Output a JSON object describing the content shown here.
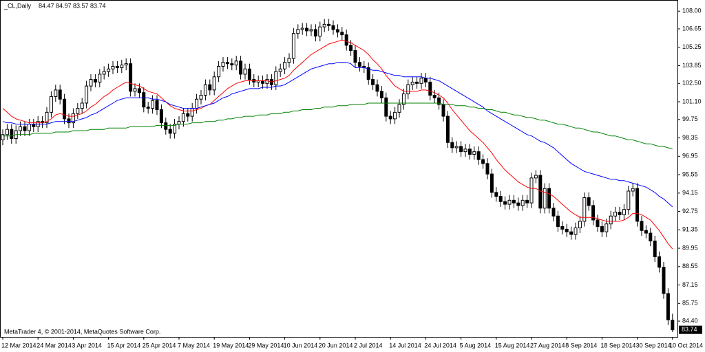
{
  "chart_data": {
    "type": "candlestick",
    "symbol": "_CL,Daily",
    "footer": "MetaTrader 4, © 2001-2014, MetaQuotes Software Corp.",
    "up_color": "#ffffff",
    "down_color": "#000000",
    "grid": false,
    "ylim": [
      83.2,
      108.85
    ],
    "yticks": [
      {
        "value": 108,
        "label": "108.00"
      },
      106.65,
      105.25,
      103.85,
      {
        "value": 102.5,
        "label": "102.50"
      },
      {
        "value": 101.1,
        "label": "101.10"
      },
      99.75,
      98.35,
      96.95,
      95.55,
      94.15,
      92.75,
      91.35,
      89.95,
      88.55,
      87.15,
      85.75,
      {
        "value": 84.4,
        "label": "84.40"
      }
    ],
    "categories": [
      "12 Mar 2014",
      null,
      null,
      null,
      null,
      null,
      null,
      null,
      "24 Mar 2014",
      null,
      null,
      null,
      null,
      null,
      null,
      null,
      "3 Apr 2014",
      null,
      null,
      null,
      null,
      null,
      null,
      null,
      "15 Apr 2014",
      null,
      null,
      null,
      null,
      null,
      null,
      null,
      "25 Apr 2014",
      null,
      null,
      null,
      null,
      null,
      null,
      null,
      "7 May 2014",
      null,
      null,
      null,
      null,
      null,
      null,
      null,
      "19 May 2014",
      null,
      null,
      null,
      null,
      null,
      null,
      null,
      "29 May 2014",
      null,
      null,
      null,
      null,
      null,
      null,
      null,
      "10 Jun 2014",
      null,
      null,
      null,
      null,
      null,
      null,
      null,
      "20 Jun 2014",
      null,
      null,
      null,
      null,
      null,
      null,
      null,
      "2 Jul 2014",
      null,
      null,
      null,
      null,
      null,
      null,
      null,
      "14 Jul 2014",
      null,
      null,
      null,
      null,
      null,
      null,
      null,
      "24 Jul 2014",
      null,
      null,
      null,
      null,
      null,
      null,
      null,
      "5 Aug 2014",
      null,
      null,
      null,
      null,
      null,
      null,
      null,
      "15 Aug 2014",
      null,
      null,
      null,
      null,
      null,
      null,
      null,
      "27 Aug 2014",
      null,
      null,
      null,
      null,
      null,
      null,
      null,
      "8 Sep 2014",
      null,
      null,
      null,
      null,
      null,
      null,
      null,
      "18 Sep 2014",
      null,
      null,
      null,
      null,
      null,
      null,
      null,
      "30 Sep 2014",
      null,
      null,
      null,
      null,
      null,
      null,
      null,
      "10 Oct 2014"
    ],
    "open": [
      98.2,
      98.6,
      99.0,
      98.3,
      98.9,
      99.2,
      98.9,
      99.4,
      99.2,
      99.6,
      99.5,
      100.3,
      101.5,
      102.0,
      101.3,
      99.8,
      99.5,
      100.2,
      100.6,
      101.0,
      102.3,
      102.8,
      102.6,
      103.2,
      103.4,
      103.6,
      103.8,
      103.7,
      103.9,
      104.0,
      101.9,
      102.1,
      101.8,
      100.7,
      100.6,
      101.2,
      100.5,
      99.5,
      99.0,
      98.7,
      99.4,
      99.6,
      100.2,
      100.0,
      100.6,
      101.3,
      101.6,
      102.4,
      102.0,
      103.0,
      103.8,
      104.1,
      104.0,
      103.9,
      104.2,
      103.2,
      103.6,
      102.8,
      102.6,
      102.7,
      102.5,
      102.8,
      102.4,
      103.4,
      103.6,
      104.1,
      104.4,
      106.3,
      106.6,
      106.7,
      106.5,
      106.6,
      106.1,
      106.8,
      107.0,
      106.9,
      106.6,
      106.4,
      106.2,
      105.4,
      105.0,
      104.1,
      103.8,
      103.7,
      102.8,
      102.4,
      101.9,
      101.4,
      100.0,
      99.8,
      100.3,
      100.9,
      101.7,
      102.4,
      102.6,
      102.5,
      102.9,
      102.6,
      101.6,
      101.4,
      100.9,
      100.0,
      98.0,
      97.6,
      97.7,
      97.3,
      97.5,
      97.1,
      97.3,
      96.7,
      96.4,
      95.6,
      94.2,
      93.9,
      93.5,
      93.3,
      93.6,
      93.4,
      93.2,
      93.6,
      93.4,
      95.3,
      95.5,
      93.0,
      94.5,
      93.0,
      92.4,
      91.6,
      91.4,
      91.2,
      91.0,
      91.5,
      92.0,
      93.8,
      93.2,
      92.1,
      91.6,
      91.2,
      91.8,
      92.4,
      92.7,
      92.5,
      92.9,
      94.3,
      94.5,
      92.0,
      91.3,
      91.1,
      90.5,
      89.3,
      88.5,
      86.5,
      84.47
    ],
    "high": [
      99.0,
      99.4,
      99.4,
      99.3,
      99.6,
      99.6,
      99.8,
      99.8,
      100.0,
      100.0,
      100.7,
      101.9,
      102.4,
      102.4,
      101.7,
      100.2,
      100.6,
      101.0,
      101.4,
      102.7,
      103.2,
      103.2,
      103.6,
      103.8,
      104.0,
      104.2,
      104.2,
      104.3,
      104.4,
      104.4,
      102.5,
      102.5,
      102.2,
      101.1,
      101.6,
      101.6,
      100.9,
      99.9,
      99.4,
      99.8,
      100.0,
      100.6,
      100.6,
      101.0,
      101.7,
      102.0,
      102.8,
      102.8,
      103.4,
      104.2,
      104.5,
      104.5,
      104.4,
      104.6,
      104.6,
      104.0,
      104.0,
      103.2,
      103.1,
      103.1,
      103.2,
      103.2,
      103.8,
      104.0,
      104.5,
      104.8,
      106.7,
      107.0,
      107.1,
      107.1,
      107.0,
      107.0,
      107.2,
      107.4,
      107.4,
      107.3,
      107.0,
      106.8,
      106.6,
      105.8,
      105.4,
      104.5,
      104.2,
      104.1,
      103.2,
      102.8,
      102.3,
      101.8,
      100.4,
      100.7,
      101.3,
      102.1,
      102.8,
      103.0,
      103.0,
      103.3,
      103.3,
      103.0,
      102.0,
      101.8,
      101.3,
      100.4,
      98.4,
      98.1,
      98.1,
      97.9,
      97.9,
      97.7,
      97.7,
      97.1,
      96.8,
      96.0,
      94.6,
      94.3,
      93.9,
      94.0,
      94.0,
      93.8,
      94.0,
      94.0,
      95.7,
      95.9,
      95.9,
      94.9,
      94.9,
      93.4,
      92.8,
      92.0,
      91.8,
      91.6,
      91.9,
      92.4,
      94.2,
      94.2,
      93.6,
      92.5,
      92.0,
      92.2,
      92.8,
      93.1,
      93.1,
      93.3,
      94.7,
      94.9,
      94.9,
      92.4,
      91.7,
      91.5,
      90.9,
      89.7,
      88.9,
      86.9,
      84.97
    ],
    "low": [
      97.8,
      98.2,
      97.9,
      97.9,
      98.5,
      98.5,
      98.5,
      98.8,
      98.8,
      99.1,
      99.1,
      99.9,
      101.1,
      100.9,
      99.4,
      99.1,
      99.1,
      99.8,
      100.2,
      100.6,
      101.9,
      102.2,
      102.2,
      102.8,
      103.0,
      103.2,
      103.3,
      103.3,
      103.5,
      101.5,
      101.5,
      101.4,
      100.3,
      100.2,
      100.2,
      100.1,
      99.1,
      98.6,
      98.3,
      98.3,
      99.0,
      99.2,
      99.6,
      99.6,
      100.2,
      100.9,
      101.2,
      101.6,
      101.6,
      102.6,
      103.4,
      103.6,
      103.5,
      103.5,
      102.8,
      102.8,
      102.4,
      102.2,
      102.2,
      102.1,
      102.1,
      102.0,
      102.0,
      103.0,
      103.2,
      103.7,
      104.0,
      105.9,
      106.2,
      106.1,
      106.1,
      105.7,
      105.7,
      106.4,
      106.5,
      106.2,
      106.0,
      105.8,
      105.0,
      104.6,
      103.7,
      103.4,
      103.3,
      102.4,
      102.0,
      101.5,
      101.0,
      99.6,
      99.4,
      99.4,
      99.9,
      100.5,
      101.3,
      102.0,
      102.1,
      102.1,
      102.2,
      101.2,
      101.0,
      100.5,
      99.6,
      97.6,
      97.2,
      97.2,
      96.9,
      96.9,
      96.7,
      96.7,
      96.3,
      96.0,
      95.2,
      93.8,
      93.5,
      93.1,
      92.9,
      92.9,
      93.0,
      92.8,
      92.8,
      93.0,
      93.0,
      94.9,
      92.6,
      92.6,
      92.6,
      92.0,
      91.2,
      91.0,
      90.8,
      90.6,
      90.6,
      91.1,
      91.6,
      92.8,
      91.7,
      91.2,
      90.8,
      90.8,
      91.4,
      92.0,
      92.1,
      92.1,
      92.5,
      93.9,
      91.6,
      90.9,
      90.7,
      90.1,
      88.9,
      88.1,
      86.1,
      84.1,
      83.57
    ],
    "close": [
      98.6,
      99.0,
      98.3,
      98.9,
      99.2,
      98.9,
      99.4,
      99.2,
      99.6,
      99.5,
      100.3,
      101.5,
      102.0,
      101.3,
      99.8,
      99.5,
      100.2,
      100.6,
      101.0,
      102.3,
      102.8,
      102.6,
      103.2,
      103.4,
      103.6,
      103.8,
      103.7,
      103.9,
      104.0,
      101.9,
      102.1,
      101.8,
      100.7,
      100.6,
      101.2,
      100.5,
      99.5,
      99.0,
      98.7,
      99.4,
      99.6,
      100.2,
      100.0,
      100.6,
      101.3,
      101.6,
      102.4,
      102.0,
      103.0,
      103.8,
      104.1,
      104.0,
      103.9,
      104.2,
      103.2,
      103.6,
      102.8,
      102.6,
      102.7,
      102.5,
      102.8,
      102.4,
      103.4,
      103.6,
      104.1,
      104.4,
      106.3,
      106.6,
      106.7,
      106.5,
      106.6,
      106.1,
      106.8,
      107.0,
      106.9,
      106.6,
      106.4,
      106.2,
      105.4,
      105.0,
      104.1,
      103.8,
      103.7,
      102.8,
      102.4,
      101.9,
      101.4,
      100.0,
      99.8,
      100.3,
      100.9,
      101.7,
      102.4,
      102.6,
      102.5,
      102.9,
      102.6,
      101.6,
      101.4,
      100.9,
      100.0,
      98.0,
      97.6,
      97.7,
      97.3,
      97.5,
      97.1,
      97.3,
      96.7,
      96.4,
      95.6,
      94.2,
      93.9,
      93.5,
      93.3,
      93.6,
      93.4,
      93.2,
      93.6,
      93.4,
      95.3,
      95.5,
      93.0,
      94.5,
      93.0,
      92.4,
      91.6,
      91.4,
      91.2,
      91.0,
      91.5,
      92.0,
      93.8,
      93.2,
      92.1,
      91.6,
      91.2,
      91.8,
      92.4,
      92.7,
      92.5,
      92.9,
      94.3,
      94.5,
      92.0,
      91.3,
      91.1,
      90.5,
      89.3,
      88.5,
      86.5,
      84.5,
      83.74
    ],
    "series": [
      {
        "color": "#ff0000",
        "values": [
          100.6,
          100.3,
          100.0,
          99.8,
          99.7,
          99.6,
          99.5,
          99.5,
          99.5,
          99.5,
          99.6,
          99.8,
          100.1,
          100.2,
          100.1,
          100.0,
          100.0,
          100.1,
          100.2,
          100.4,
          100.7,
          100.9,
          101.2,
          101.5,
          101.7,
          102.0,
          102.2,
          102.4,
          102.6,
          102.5,
          102.4,
          102.3,
          102.1,
          101.9,
          101.8,
          101.7,
          101.4,
          101.1,
          100.8,
          100.6,
          100.5,
          100.4,
          100.4,
          100.4,
          100.5,
          100.6,
          100.8,
          100.9,
          101.2,
          101.5,
          101.8,
          102.1,
          102.3,
          102.5,
          102.6,
          102.7,
          102.7,
          102.7,
          102.7,
          102.7,
          102.7,
          102.6,
          102.7,
          102.8,
          102.9,
          103.1,
          103.5,
          103.8,
          104.1,
          104.4,
          104.7,
          104.9,
          105.1,
          105.3,
          105.5,
          105.6,
          105.7,
          105.8,
          105.7,
          105.6,
          105.4,
          105.2,
          105.0,
          104.7,
          104.3,
          104.0,
          103.6,
          103.1,
          102.7,
          102.3,
          102.1,
          101.9,
          101.9,
          101.9,
          101.9,
          102.0,
          102.0,
          101.9,
          101.8,
          101.6,
          101.4,
          101.0,
          100.5,
          100.1,
          99.7,
          99.3,
          98.9,
          98.6,
          98.3,
          98.0,
          97.6,
          97.2,
          96.7,
          96.3,
          95.9,
          95.6,
          95.3,
          95.0,
          94.8,
          94.6,
          94.5,
          94.5,
          94.3,
          94.2,
          94.1,
          93.9,
          93.6,
          93.3,
          93.0,
          92.7,
          92.5,
          92.3,
          92.3,
          92.3,
          92.3,
          92.2,
          92.1,
          92.0,
          92.0,
          92.0,
          92.0,
          92.1,
          92.3,
          92.6,
          92.6,
          92.5,
          92.3,
          92.1,
          91.7,
          91.3,
          90.8,
          90.3,
          89.9
        ]
      },
      {
        "color": "#0000ff",
        "values": [
          99.6,
          99.5,
          99.5,
          99.4,
          99.4,
          99.4,
          99.4,
          99.4,
          99.4,
          99.4,
          99.4,
          99.5,
          99.6,
          99.6,
          99.6,
          99.6,
          99.6,
          99.7,
          99.8,
          99.9,
          100.1,
          100.2,
          100.4,
          100.6,
          100.8,
          101.0,
          101.2,
          101.3,
          101.4,
          101.4,
          101.4,
          101.4,
          101.4,
          101.4,
          101.3,
          101.3,
          101.2,
          101.1,
          100.9,
          100.8,
          100.7,
          100.6,
          100.6,
          100.6,
          100.6,
          100.7,
          100.8,
          100.9,
          101.0,
          101.2,
          101.4,
          101.5,
          101.7,
          101.8,
          101.9,
          102.0,
          102.1,
          102.1,
          102.1,
          102.2,
          102.2,
          102.2,
          102.3,
          102.3,
          102.4,
          102.6,
          102.8,
          103.0,
          103.2,
          103.4,
          103.6,
          103.7,
          103.8,
          103.9,
          104.0,
          104.0,
          104.1,
          104.1,
          104.1,
          104.0,
          103.7,
          103.7,
          103.7,
          103.6,
          103.5,
          103.5,
          103.4,
          103.3,
          103.2,
          103.1,
          103.1,
          103.0,
          103.0,
          103.0,
          103.0,
          103.0,
          102.9,
          102.9,
          102.8,
          102.7,
          102.5,
          102.3,
          102.1,
          101.9,
          101.7,
          101.5,
          101.3,
          101.1,
          100.9,
          100.7,
          100.4,
          100.2,
          100.0,
          99.8,
          99.6,
          99.4,
          99.2,
          99.0,
          98.8,
          98.6,
          98.5,
          98.3,
          98.1,
          98.0,
          97.8,
          97.6,
          97.3,
          97.0,
          96.7,
          96.4,
          96.2,
          96.0,
          95.8,
          95.7,
          95.6,
          95.5,
          95.4,
          95.3,
          95.2,
          95.2,
          95.1,
          95.1,
          95.0,
          94.9,
          94.8,
          94.7,
          94.6,
          94.4,
          94.2,
          93.9,
          93.7,
          93.4,
          93.1
        ]
      },
      {
        "color": "#008000",
        "values": [
          98.5,
          98.5,
          98.5,
          98.6,
          98.6,
          98.6,
          98.6,
          98.7,
          98.7,
          98.7,
          98.7,
          98.7,
          98.8,
          98.8,
          98.8,
          98.8,
          98.9,
          98.9,
          98.9,
          98.9,
          99.0,
          99.0,
          99.0,
          99.0,
          99.1,
          99.1,
          99.1,
          99.1,
          99.1,
          99.2,
          99.2,
          99.2,
          99.2,
          99.2,
          99.2,
          99.3,
          99.3,
          99.3,
          99.3,
          99.3,
          99.4,
          99.4,
          99.4,
          99.5,
          99.5,
          99.5,
          99.6,
          99.6,
          99.6,
          99.7,
          99.7,
          99.8,
          99.8,
          99.9,
          99.9,
          100.0,
          100.0,
          100.0,
          100.1,
          100.1,
          100.1,
          100.2,
          100.2,
          100.2,
          100.3,
          100.3,
          100.4,
          100.4,
          100.5,
          100.5,
          100.5,
          100.6,
          100.6,
          100.7,
          100.7,
          100.7,
          100.8,
          100.8,
          100.8,
          100.9,
          100.9,
          100.9,
          100.9,
          101.0,
          101.0,
          101.0,
          101.0,
          101.0,
          101.0,
          101.0,
          101.0,
          101.0,
          101.0,
          101.0,
          101.0,
          101.0,
          101.0,
          101.0,
          101.0,
          101.0,
          100.9,
          100.9,
          100.9,
          100.8,
          100.8,
          100.8,
          100.7,
          100.7,
          100.6,
          100.6,
          100.5,
          100.5,
          100.4,
          100.3,
          100.3,
          100.2,
          100.1,
          100.1,
          100.0,
          99.9,
          99.9,
          99.8,
          99.7,
          99.7,
          99.6,
          99.5,
          99.4,
          99.4,
          99.3,
          99.2,
          99.1,
          99.1,
          99.0,
          98.9,
          98.8,
          98.8,
          98.7,
          98.6,
          98.5,
          98.5,
          98.4,
          98.3,
          98.2,
          98.2,
          98.1,
          98.0,
          97.9,
          97.9,
          97.8,
          97.7,
          97.7,
          97.6,
          97.5
        ]
      }
    ]
  }
}
